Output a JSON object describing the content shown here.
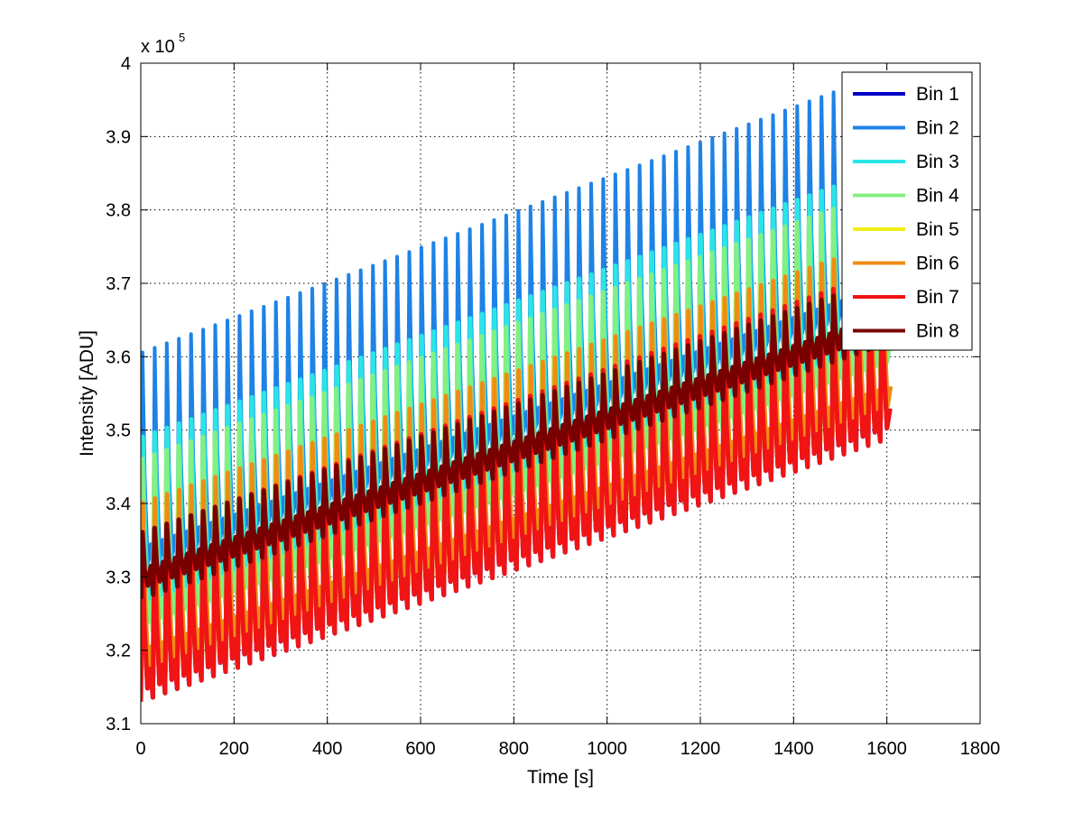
{
  "chart_data": {
    "type": "line",
    "title": "",
    "xlabel": "Time [s]",
    "ylabel": "Intensity [ADU]",
    "y_multiplier_label": "x 10",
    "y_multiplier_exponent": "5",
    "xlim": [
      0,
      1800
    ],
    "ylim": [
      3.1,
      4.0
    ],
    "x_ticks": [
      0,
      200,
      400,
      600,
      800,
      1000,
      1200,
      1400,
      1600,
      1800
    ],
    "x_tick_labels": [
      "0",
      "200",
      "400",
      "600",
      "800",
      "1000",
      "1200",
      "1400",
      "1600",
      "1800"
    ],
    "y_ticks": [
      3.1,
      3.2,
      3.3,
      3.4,
      3.5,
      3.6,
      3.7,
      3.8,
      3.9,
      4.0
    ],
    "y_tick_labels": [
      "3.1",
      "3.2",
      "3.3",
      "3.4",
      "3.5",
      "3.6",
      "3.7",
      "3.8",
      "3.9",
      "4"
    ],
    "grid": true,
    "legend_position": "top-right",
    "oscillation_period_s": 26,
    "x_end": 1610,
    "series": [
      {
        "name": "Bin 1",
        "color": "#0000c8",
        "peak_start": 3.38,
        "peak_end": 3.72,
        "trough_start": 3.13,
        "trough_end": 3.49
      },
      {
        "name": "Bin 2",
        "color": "#1e82e6",
        "peak_start": 3.605,
        "peak_end": 3.99,
        "trough_start": 3.3,
        "trough_end": 3.66
      },
      {
        "name": "Bin 3",
        "color": "#28e6e6",
        "peak_start": 3.49,
        "peak_end": 3.86,
        "trough_start": 3.25,
        "trough_end": 3.61
      },
      {
        "name": "Bin 4",
        "color": "#82f082",
        "peak_start": 3.46,
        "peak_end": 3.83,
        "trough_start": 3.22,
        "trough_end": 3.58
      },
      {
        "name": "Bin 5",
        "color": "#f0f014",
        "peak_start": 3.4,
        "peak_end": 3.76,
        "trough_start": 3.16,
        "trough_end": 3.52
      },
      {
        "name": "Bin 6",
        "color": "#f08c14",
        "peak_start": 3.4,
        "peak_end": 3.76,
        "trough_start": 3.16,
        "trough_end": 3.52
      },
      {
        "name": "Bin 7",
        "color": "#f01414",
        "peak_start": 3.36,
        "peak_end": 3.72,
        "trough_start": 3.13,
        "trough_end": 3.49
      },
      {
        "name": "Bin 8",
        "color": "#780000",
        "peak_start": 3.36,
        "peak_end": 3.71,
        "trough_start": 3.27,
        "trough_end": 3.62
      }
    ]
  }
}
